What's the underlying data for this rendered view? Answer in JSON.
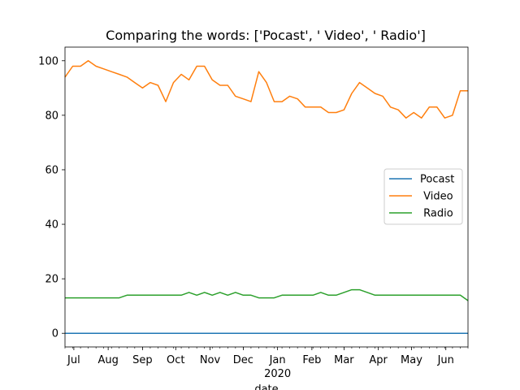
{
  "chart_data": {
    "type": "line",
    "title": "Comparing the words: ['Pocast', ' Video', ' Radio']",
    "xlabel": "date",
    "ylabel": "",
    "ylim": [
      -5,
      105
    ],
    "xlim": [
      "2019-06-23",
      "2020-06-21"
    ],
    "grid": false,
    "legend_position": "center-right",
    "x_tick_labels": [
      {
        "date": "2019-07-01",
        "label": "Jul",
        "sub": ""
      },
      {
        "date": "2019-08-01",
        "label": "Aug",
        "sub": ""
      },
      {
        "date": "2019-09-01",
        "label": "Sep",
        "sub": ""
      },
      {
        "date": "2019-10-01",
        "label": "Oct",
        "sub": ""
      },
      {
        "date": "2019-11-01",
        "label": "Nov",
        "sub": ""
      },
      {
        "date": "2019-12-01",
        "label": "Dec",
        "sub": ""
      },
      {
        "date": "2020-01-01",
        "label": "Jan",
        "sub": "2020"
      },
      {
        "date": "2020-02-01",
        "label": "Feb",
        "sub": ""
      },
      {
        "date": "2020-03-01",
        "label": "Mar",
        "sub": ""
      },
      {
        "date": "2020-04-01",
        "label": "Apr",
        "sub": ""
      },
      {
        "date": "2020-05-01",
        "label": "May",
        "sub": ""
      },
      {
        "date": "2020-06-01",
        "label": "Jun",
        "sub": ""
      }
    ],
    "y_ticks": [
      0,
      20,
      40,
      60,
      80,
      100
    ],
    "x": [
      "2019-06-23",
      "2019-06-30",
      "2019-07-07",
      "2019-07-14",
      "2019-07-21",
      "2019-07-28",
      "2019-08-04",
      "2019-08-11",
      "2019-08-18",
      "2019-08-25",
      "2019-09-01",
      "2019-09-08",
      "2019-09-15",
      "2019-09-22",
      "2019-09-29",
      "2019-10-06",
      "2019-10-13",
      "2019-10-20",
      "2019-10-27",
      "2019-11-03",
      "2019-11-10",
      "2019-11-17",
      "2019-11-24",
      "2019-12-01",
      "2019-12-08",
      "2019-12-15",
      "2019-12-22",
      "2019-12-29",
      "2020-01-05",
      "2020-01-12",
      "2020-01-19",
      "2020-01-26",
      "2020-02-02",
      "2020-02-09",
      "2020-02-16",
      "2020-02-23",
      "2020-03-01",
      "2020-03-08",
      "2020-03-15",
      "2020-03-22",
      "2020-03-29",
      "2020-04-05",
      "2020-04-12",
      "2020-04-19",
      "2020-04-26",
      "2020-05-03",
      "2020-05-10",
      "2020-05-17",
      "2020-05-24",
      "2020-05-31",
      "2020-06-07",
      "2020-06-14",
      "2020-06-21"
    ],
    "series": [
      {
        "name": "Pocast",
        "color": "#1f77b4",
        "values": [
          0,
          0,
          0,
          0,
          0,
          0,
          0,
          0,
          0,
          0,
          0,
          0,
          0,
          0,
          0,
          0,
          0,
          0,
          0,
          0,
          0,
          0,
          0,
          0,
          0,
          0,
          0,
          0,
          0,
          0,
          0,
          0,
          0,
          0,
          0,
          0,
          0,
          0,
          0,
          0,
          0,
          0,
          0,
          0,
          0,
          0,
          0,
          0,
          0,
          0,
          0,
          0,
          0
        ]
      },
      {
        "name": " Video",
        "color": "#ff7f0e",
        "values": [
          94,
          98,
          98,
          100,
          98,
          97,
          96,
          95,
          94,
          92,
          90,
          92,
          91,
          85,
          92,
          95,
          93,
          98,
          98,
          93,
          91,
          91,
          87,
          86,
          85,
          96,
          92,
          85,
          85,
          87,
          86,
          83,
          83,
          83,
          81,
          81,
          82,
          88,
          92,
          90,
          88,
          87,
          83,
          82,
          79,
          81,
          79,
          83,
          83,
          79,
          80,
          89,
          89
        ]
      },
      {
        "name": " Radio",
        "color": "#2ca02c",
        "values": [
          13,
          13,
          13,
          13,
          13,
          13,
          13,
          13,
          14,
          14,
          14,
          14,
          14,
          14,
          14,
          14,
          15,
          14,
          15,
          14,
          15,
          14,
          15,
          14,
          14,
          13,
          13,
          13,
          14,
          14,
          14,
          14,
          14,
          15,
          14,
          14,
          15,
          16,
          16,
          15,
          14,
          14,
          14,
          14,
          14,
          14,
          14,
          14,
          14,
          14,
          14,
          14,
          12
        ]
      }
    ]
  }
}
